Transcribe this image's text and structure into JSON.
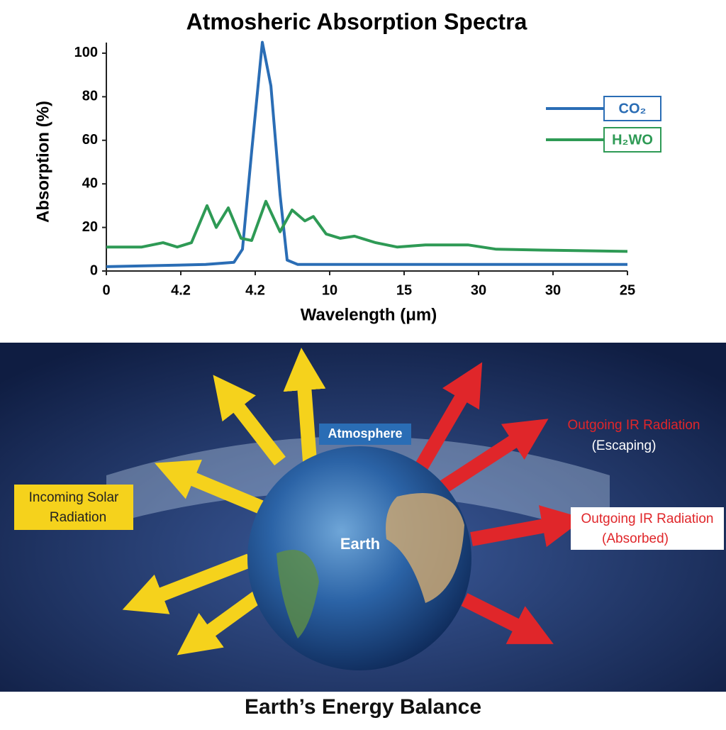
{
  "chart_data": {
    "type": "line",
    "title": "Atmosheric Absorption Spectra",
    "y_label": "Absorption (%)",
    "x_label": "Wavelength (μm)",
    "xlim": [
      0,
      7
    ],
    "xticks": [
      {
        "value": 0,
        "label": "0"
      },
      {
        "value": 1,
        "label": "4.2"
      },
      {
        "value": 2,
        "label": "4.2"
      },
      {
        "value": 3,
        "label": "10"
      },
      {
        "value": 4,
        "label": "15"
      },
      {
        "value": 5,
        "label": "30"
      },
      {
        "value": 6,
        "label": "30"
      },
      {
        "value": 7,
        "label": "25"
      }
    ],
    "ylim": [
      0,
      105
    ],
    "yticks": [
      0,
      20,
      40,
      60,
      80,
      100
    ],
    "legend": "upper right",
    "series": [
      {
        "name": "CO₂",
        "color": "#2a6db5",
        "x": [
          0,
          1.333,
          1.714,
          1.829,
          1.952,
          2.095,
          2.21,
          2.333,
          2.429,
          2.571,
          7
        ],
        "values": [
          2,
          3,
          4,
          10,
          55,
          105,
          85,
          35,
          5,
          3,
          3
        ]
      },
      {
        "name": "H₂WO",
        "color": "#2e9a55",
        "x": [
          0,
          0.476,
          0.762,
          0.952,
          1.143,
          1.352,
          1.476,
          1.638,
          1.81,
          1.952,
          2.143,
          2.333,
          2.495,
          2.667,
          2.781,
          2.952,
          3.143,
          3.333,
          3.619,
          3.905,
          4.286,
          4.857,
          5.238,
          6,
          7
        ],
        "values": [
          11,
          11,
          13,
          11,
          13,
          30,
          20,
          29,
          15,
          14,
          32,
          18,
          28,
          23,
          25,
          17,
          15,
          16,
          13,
          11,
          12,
          12,
          10,
          9.5,
          9
        ]
      }
    ]
  },
  "diagram": {
    "atmosphere": "Atmosphere",
    "incoming": [
      "Incoming Solar",
      "Radiation"
    ],
    "escaping": [
      "Outgoing IR Radiation",
      "(Escaping)"
    ],
    "absorbed": [
      "Outgoing IR Radiation",
      "(Absorbed)"
    ],
    "earth": "Earth",
    "title": "Earth’s Energy Balance"
  }
}
